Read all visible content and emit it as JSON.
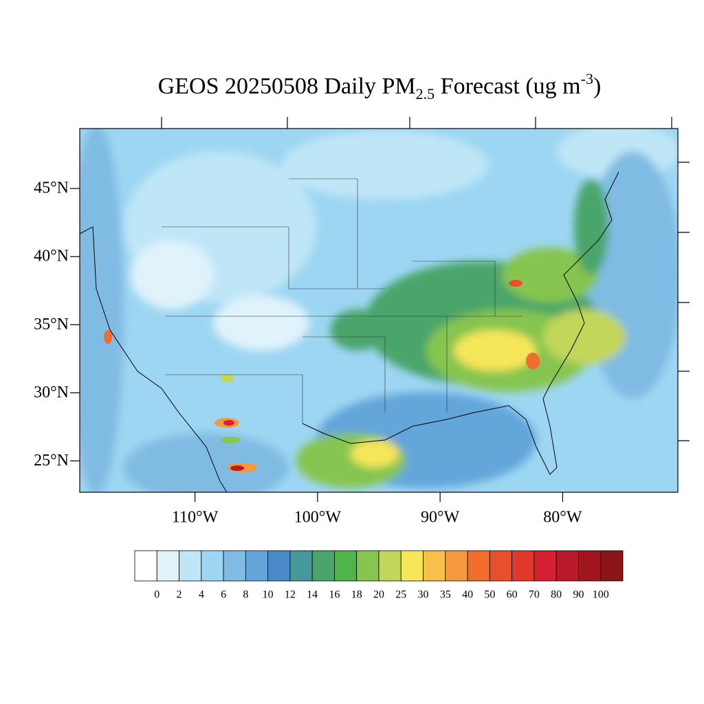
{
  "title": {
    "text": "GEOS 20250508 Daily PM",
    "subscript": "2.5",
    "middle": " Forecast (ug m",
    "superscript": "-3",
    "end": ")"
  },
  "map": {
    "lonlim": [
      -119.4,
      -70.6
    ],
    "latlim": [
      22.7,
      49.4
    ],
    "lat_ticks": [
      {
        "value": 45,
        "label": "45°N"
      },
      {
        "value": 40,
        "label": "40°N"
      },
      {
        "value": 35,
        "label": "35°N"
      },
      {
        "value": 30,
        "label": "30°N"
      },
      {
        "value": 25,
        "label": "25°N"
      }
    ],
    "lon_ticks": [
      {
        "value": -110,
        "label": "110°W"
      },
      {
        "value": -100,
        "label": "100°W"
      },
      {
        "value": -90,
        "label": "90°W"
      },
      {
        "value": -80,
        "label": "80°W"
      }
    ]
  },
  "colorbar": {
    "levels": [
      0,
      2,
      4,
      6,
      8,
      10,
      12,
      14,
      16,
      18,
      20,
      25,
      30,
      35,
      40,
      50,
      60,
      70,
      80,
      90,
      100
    ],
    "colors": [
      "#ffffff",
      "#e0f3fb",
      "#bfe6f7",
      "#9dd6f2",
      "#80bbe3",
      "#64a6da",
      "#4a8ac8",
      "#46999a",
      "#4aa56a",
      "#4fb54a",
      "#86c54f",
      "#c2d65a",
      "#f6e65a",
      "#f8c04a",
      "#f59a3c",
      "#f26c2e",
      "#e84f2c",
      "#e0382a",
      "#d42030",
      "#b81a2a",
      "#a0161e",
      "#8b1419"
    ]
  }
}
